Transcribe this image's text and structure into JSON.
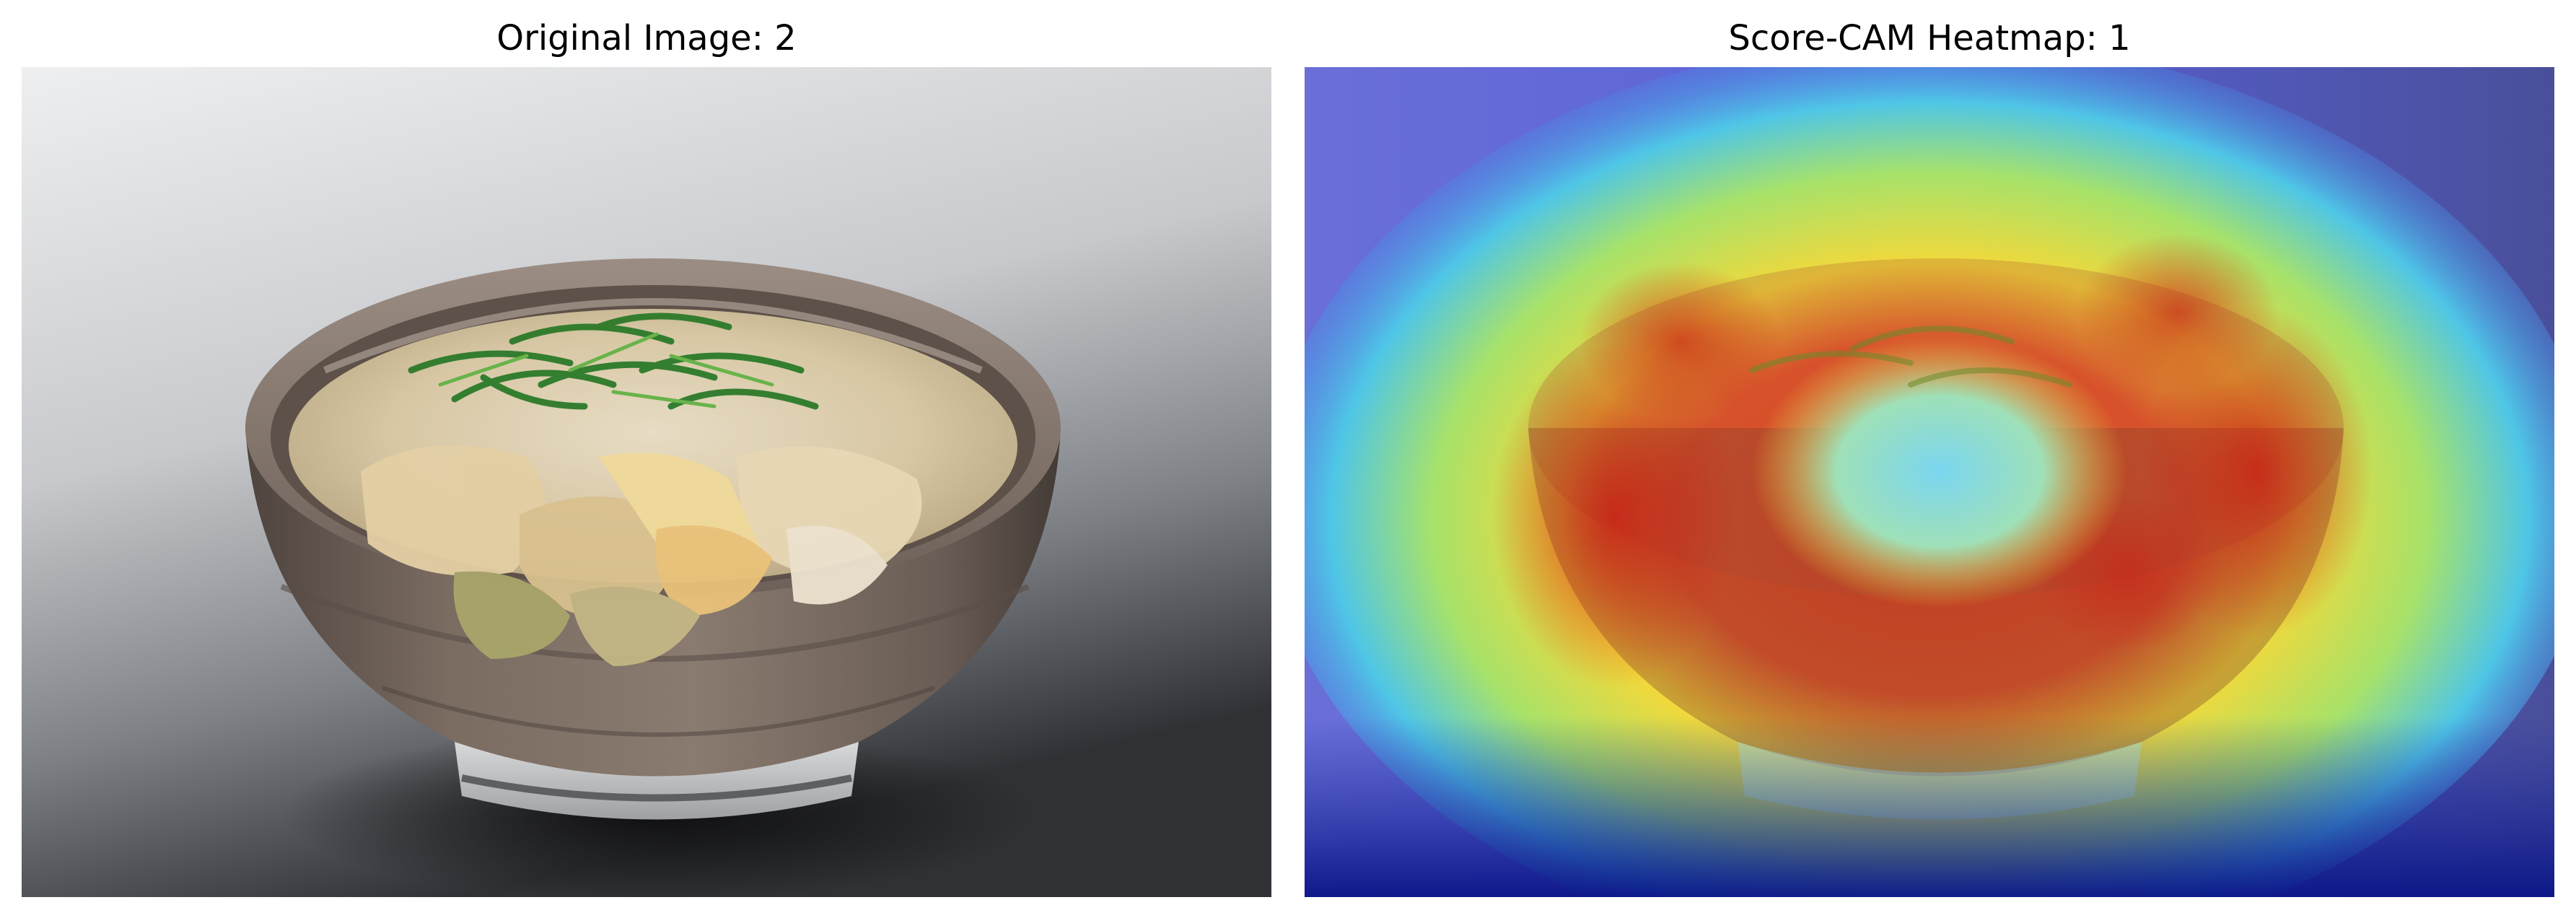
{
  "panels": [
    {
      "title": "Original Image: 2",
      "content": "photo of a bowl of noodle soup topped with green onions and fried tofu on a gray gradient background"
    },
    {
      "title": "Score-CAM Heatmap: 1",
      "content": "same photo overlaid with a jet-colormap Score-CAM heatmap"
    }
  ],
  "colors": {
    "background": "#ffffff",
    "photo_bg_light": "#e8e9ea",
    "photo_bg_dark": "#3a3c40",
    "bowl_outer": "#6e6159",
    "heat_high": "#d22a1c",
    "heat_mid": "#f2e23a",
    "heat_low": "#1a2a9e"
  }
}
